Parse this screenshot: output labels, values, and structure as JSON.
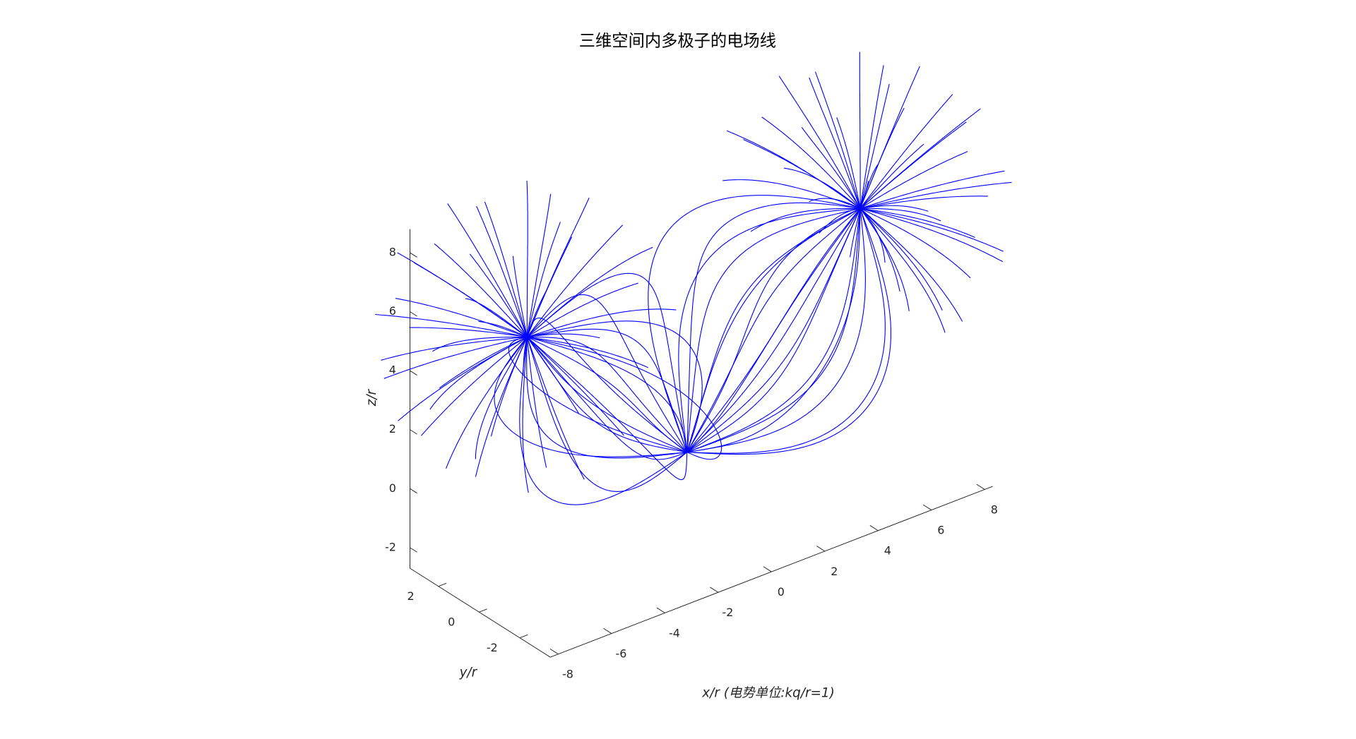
{
  "chart_data": {
    "type": "fieldlines3d",
    "title": "三维空间内多极子的电场线",
    "xlabel": "x/r (电势单位:kq/r=1)",
    "ylabel": "y/r",
    "zlabel": "z/r",
    "color": "#0000ff",
    "xlim": [
      -8.3,
      8.3
    ],
    "xticks": [
      -8,
      -6,
      -4,
      -2,
      0,
      2,
      4,
      6,
      8
    ],
    "ylim": [
      -3.5,
      3.4
    ],
    "yticks": [
      -2,
      0,
      2
    ],
    "zlim": [
      -2.7,
      8.8
    ],
    "zticks": [
      -2,
      0,
      2,
      4,
      6,
      8
    ]
  }
}
